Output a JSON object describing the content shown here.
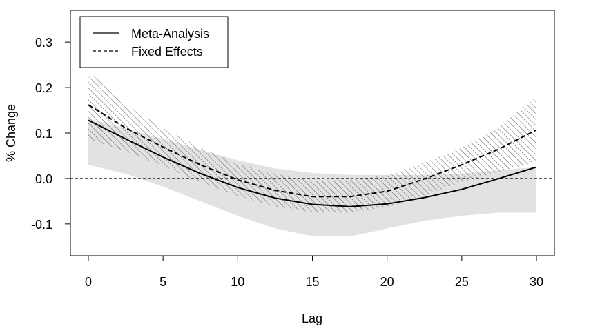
{
  "chart_data": {
    "type": "line",
    "title": "",
    "xlabel": "Lag",
    "ylabel": "% Change",
    "xlim": [
      -1.2,
      31.2
    ],
    "ylim": [
      -0.17,
      0.37
    ],
    "xticks": [
      0,
      5,
      10,
      15,
      20,
      25,
      30
    ],
    "yticks": [
      -0.1,
      0.0,
      0.1,
      0.2,
      0.3
    ],
    "ytick_labels": [
      "-0.1",
      "0.0",
      "0.1",
      "0.2",
      "0.3"
    ],
    "reference_line": 0.0,
    "legend_position": "top-left",
    "x": [
      0,
      2.5,
      5,
      7.5,
      10,
      12.5,
      15,
      17.5,
      20,
      22.5,
      25,
      27.5,
      30
    ],
    "series": [
      {
        "name": "Meta-Analysis",
        "linestyle": "solid",
        "values": [
          0.128,
          0.087,
          0.047,
          0.011,
          -0.02,
          -0.043,
          -0.057,
          -0.062,
          -0.056,
          -0.042,
          -0.024,
          0.0,
          0.025
        ],
        "band_lower": [
          0.03,
          0.01,
          -0.018,
          -0.05,
          -0.082,
          -0.11,
          -0.127,
          -0.128,
          -0.11,
          -0.093,
          -0.082,
          -0.075,
          -0.075
        ],
        "band_upper": [
          0.132,
          0.11,
          0.087,
          0.063,
          0.04,
          0.022,
          0.012,
          0.008,
          0.008,
          0.008,
          0.011,
          0.018,
          0.025
        ],
        "band_style": "gray-fill"
      },
      {
        "name": "Fixed Effects",
        "linestyle": "dashed",
        "values": [
          0.162,
          0.111,
          0.069,
          0.03,
          -0.003,
          -0.026,
          -0.04,
          -0.04,
          -0.028,
          -0.001,
          0.03,
          0.065,
          0.107
        ],
        "band_lower": [
          0.087,
          0.06,
          0.028,
          -0.008,
          -0.038,
          -0.062,
          -0.074,
          -0.075,
          -0.063,
          -0.037,
          -0.008,
          0.015,
          0.036
        ],
        "band_upper": [
          0.236,
          0.163,
          0.111,
          0.068,
          0.031,
          0.01,
          -0.005,
          -0.003,
          0.007,
          0.035,
          0.068,
          0.115,
          0.18
        ],
        "band_style": "hatched"
      }
    ]
  },
  "colors": {
    "line": "#000000",
    "band_fill": "#e2e2e2",
    "hatch": "#555555"
  }
}
